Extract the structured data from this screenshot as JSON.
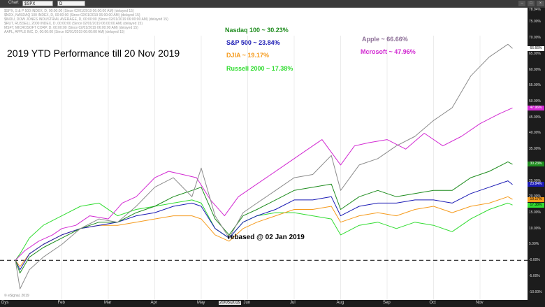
{
  "toolbar": {
    "chart_label": "Chart",
    "symbol": "$SPX",
    "interval": "D"
  },
  "header_lines": [
    "$SPX, S & P 500 INDEX, D, 00:00:00 (Since 02/01/2019 06:00:00 AM) (delayed 15)",
    "$NDX, NASDAQ 100 INDEX, D, 00:00:00 (Since 02/01/2019 06:00:00 AM) (delayed 15)",
    "$INDU, DOW JONES INDUSTRIAL AVERAGE, D, 00:00:00 (Since 02/01/2019 06:00:00 AM) (delayed 15)",
    "$RUT, RUSSELL 2000 INDEX, D, 00:00:00 (Since 02/01/2019 06:00:00 AM) (delayed 15)",
    "MSFT, MICROSOFT CORP, D, 00:00:00 (Since 02/01/2019 06:00:00 AM) (delayed 15)",
    "AAPL, APPLE INC, D, 00:00:00 (Since 02/01/2019 06:00:00 AM) (delayed 15)"
  ],
  "watermark": "© eSignal, 2019",
  "x_axis_label_left": "Dys",
  "x_highlight": "20/05/2019",
  "chart_data": {
    "type": "line",
    "title": "2019 YTD Performance till 20 Nov 2019",
    "xlabel": "",
    "ylabel": "",
    "x_ticks": [
      "Feb",
      "Mar",
      "Apr",
      "May",
      "Jun",
      "Jul",
      "Aug",
      "Sep",
      "Oct",
      "Nov"
    ],
    "x_ticks_month_index": [
      1,
      2,
      3,
      4,
      5,
      6,
      7,
      8,
      9,
      10
    ],
    "y_ticks": [
      "75.00%",
      "70.00%",
      "65.00%",
      "60.00%",
      "55.00%",
      "50.00%",
      "45.00%",
      "40.00%",
      "35.00%",
      "30.00%",
      "25.00%",
      "20.00%",
      "15.00%",
      "10.00%",
      "5.00%",
      "-0.00%",
      "-5.00%",
      "-10.00%"
    ],
    "y_tick_values": [
      75,
      70,
      65,
      60,
      55,
      50,
      45,
      40,
      35,
      30,
      25,
      20,
      15,
      10,
      5,
      0,
      -5,
      -10
    ],
    "top_label": "78.94%",
    "ylim": [
      -12.5,
      79.5
    ],
    "baseline_annotation": "rebased @ 02 Jan 2019",
    "x_unit": "months since 02 Jan 2019",
    "series": [
      {
        "name": "Apple",
        "annotation": "Apple ~ 66.66%",
        "end_label": "66.66%",
        "color": "#8c8c8c",
        "badge_color": "#ffffff",
        "x": [
          0,
          0.1,
          0.3,
          0.6,
          1.0,
          1.4,
          1.8,
          2.2,
          2.6,
          3.0,
          3.4,
          3.8,
          4.0,
          4.3,
          4.6,
          4.9,
          5.2,
          5.6,
          6.0,
          6.4,
          6.8,
          7.0,
          7.4,
          7.8,
          8.2,
          8.6,
          9.0,
          9.4,
          9.8,
          10.2,
          10.6,
          10.7
        ],
        "y": [
          0,
          -9,
          -3,
          1,
          5,
          10,
          13,
          12,
          17,
          23,
          26,
          20,
          29,
          14,
          7,
          15,
          18,
          22,
          26,
          27,
          33,
          22,
          30,
          32,
          36,
          39,
          44,
          48,
          58,
          64,
          68,
          66.66
        ]
      },
      {
        "name": "Mcrosoft",
        "annotation": "Mcrosoft ~ 47.96%",
        "end_label": "47.96%",
        "color": "#d22ad2",
        "badge_color": "#d22ad2",
        "x": [
          0,
          0.2,
          0.5,
          0.8,
          1.0,
          1.3,
          1.6,
          2.0,
          2.3,
          2.6,
          3.0,
          3.3,
          3.6,
          3.9,
          4.2,
          4.5,
          4.8,
          5.1,
          5.4,
          5.8,
          6.2,
          6.6,
          7.0,
          7.3,
          7.6,
          8.0,
          8.4,
          8.8,
          9.2,
          9.6,
          10.0,
          10.4,
          10.7
        ],
        "y": [
          0,
          3,
          6,
          8,
          10,
          11,
          14,
          13,
          18,
          20,
          26,
          28,
          27,
          26,
          19,
          14,
          20,
          23,
          26,
          30,
          34,
          38,
          30,
          36,
          37,
          38,
          35,
          40,
          36,
          39,
          43,
          46,
          47.96
        ]
      },
      {
        "name": "Nasdaq 100",
        "annotation": "Nasdaq 100 ~ 30.23%",
        "end_label": "30.23%",
        "color": "#1e8c1e",
        "badge_color": "#1e8c1e",
        "x": [
          0,
          0.1,
          0.3,
          0.6,
          1.0,
          1.4,
          1.8,
          2.2,
          2.6,
          3.0,
          3.4,
          3.8,
          4.0,
          4.3,
          4.6,
          4.9,
          5.2,
          5.6,
          6.0,
          6.4,
          6.8,
          7.0,
          7.4,
          7.8,
          8.2,
          8.6,
          9.0,
          9.4,
          9.8,
          10.2,
          10.6,
          10.7
        ],
        "y": [
          0,
          -4,
          1,
          4,
          7,
          10,
          12,
          12,
          15,
          17,
          20,
          22,
          23,
          13,
          8,
          14,
          16,
          19,
          22,
          23,
          24,
          16,
          20,
          22,
          20,
          21,
          22,
          22,
          26,
          28,
          31,
          30.23
        ]
      },
      {
        "name": "S&P 500",
        "annotation": "S&P 500 ~ 23.84%",
        "end_label": "23.84%",
        "color": "#1a1ab4",
        "badge_color": "#1a1ab4",
        "x": [
          0,
          0.1,
          0.3,
          0.6,
          1.0,
          1.4,
          1.8,
          2.2,
          2.6,
          3.0,
          3.4,
          3.8,
          4.0,
          4.3,
          4.6,
          4.9,
          5.2,
          5.6,
          6.0,
          6.4,
          6.8,
          7.0,
          7.4,
          7.8,
          8.2,
          8.6,
          9.0,
          9.4,
          9.8,
          10.2,
          10.6,
          10.7
        ],
        "y": [
          0,
          -3,
          2,
          5,
          8,
          10,
          11,
          12,
          14,
          15,
          17,
          18,
          17,
          10,
          7,
          12,
          14,
          16,
          19,
          19,
          20,
          14,
          17,
          18,
          18,
          19,
          19,
          18,
          21,
          23,
          25,
          23.84
        ]
      },
      {
        "name": "DJIA",
        "annotation": "DJIA ~ 19.17%",
        "end_label": "19.17%",
        "color": "#f59b1e",
        "badge_color": "#f59b1e",
        "x": [
          0,
          0.1,
          0.3,
          0.6,
          1.0,
          1.4,
          1.8,
          2.2,
          2.6,
          3.0,
          3.4,
          3.8,
          4.0,
          4.3,
          4.6,
          4.9,
          5.2,
          5.6,
          6.0,
          6.4,
          6.8,
          7.0,
          7.4,
          7.8,
          8.2,
          8.6,
          9.0,
          9.4,
          9.8,
          10.2,
          10.6,
          10.7
        ],
        "y": [
          0,
          -2,
          2,
          5,
          8,
          10,
          11,
          11,
          12,
          13,
          14,
          14,
          13,
          8,
          6,
          10,
          12,
          14,
          16,
          16,
          17,
          12,
          14,
          15,
          14,
          16,
          17,
          15,
          17,
          18,
          20,
          19.17
        ]
      },
      {
        "name": "Russell 2000",
        "annotation": "Russell 2000 ~ 17.38%",
        "end_label": "17.38%",
        "color": "#32dc32",
        "badge_color": "#32dc32",
        "x": [
          0,
          0.1,
          0.3,
          0.6,
          1.0,
          1.4,
          1.8,
          2.2,
          2.6,
          3.0,
          3.4,
          3.8,
          4.0,
          4.3,
          4.6,
          4.9,
          5.2,
          5.6,
          6.0,
          6.4,
          6.8,
          7.0,
          7.4,
          7.8,
          8.2,
          8.6,
          9.0,
          9.4,
          9.8,
          10.2,
          10.6,
          10.7
        ],
        "y": [
          0,
          2,
          7,
          11,
          14,
          17,
          18,
          14,
          16,
          17,
          18,
          19,
          18,
          10,
          7,
          12,
          14,
          15,
          15,
          14,
          13,
          8,
          11,
          12,
          10,
          12,
          11,
          9,
          13,
          16,
          18,
          17.38
        ]
      }
    ]
  }
}
